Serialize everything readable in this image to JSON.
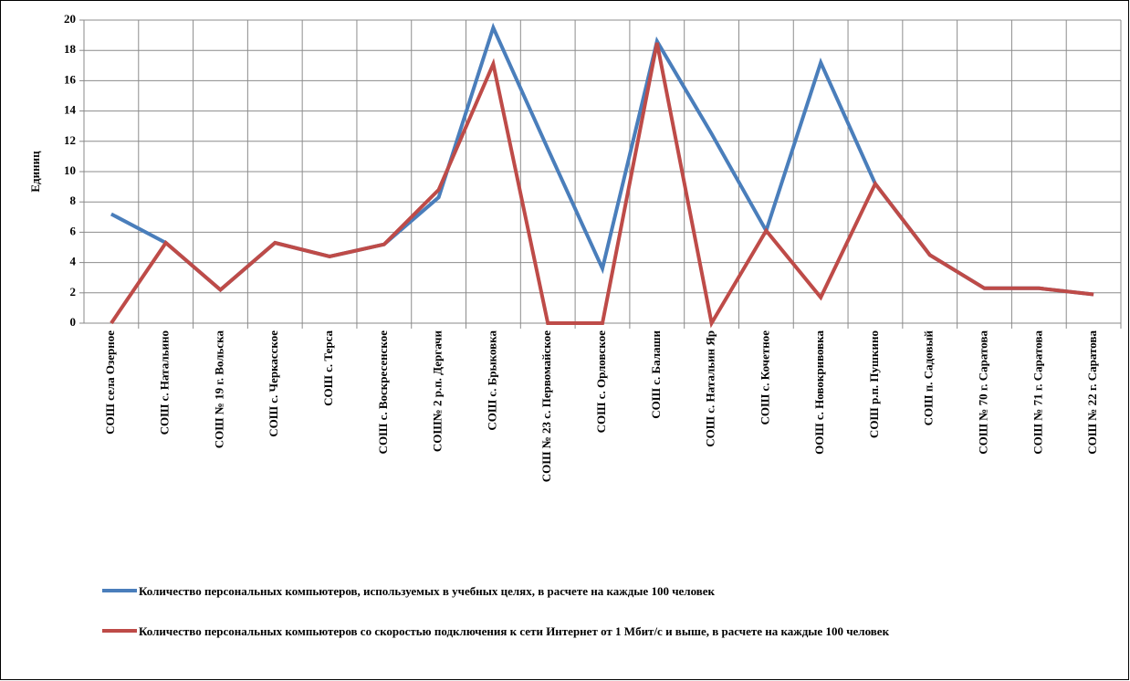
{
  "chart_data": {
    "type": "line",
    "ylabel": "Единиц",
    "categories": [
      "СОШ села Озерное",
      "СОШ с. Натальино",
      "СОШ № 19 г. Вольска",
      "СОШ с. Черкасское",
      "СОШ с. Терса",
      "СОШ с. Воскресенское",
      "СОШ№ 2 р.п. Дергачи",
      "СОШ с. Брыковка",
      "СОШ № 23 с. Первомайское",
      "СОШ с. Орловское",
      "СОШ с. Балаши",
      "СОШ с. Натальин Яр",
      "СОШ с. Кочетное",
      "ООШ с. Новокривовка",
      "СОШ р.п. Пушкино",
      "СОШ п. Садовый",
      "СОШ № 70 г. Саратова",
      "СОШ № 71 г. Саратова",
      "СОШ № 22 г. Саратова"
    ],
    "series": [
      {
        "name": "Количество персональных компьютеров, используемых в учебных целях, в расчете на каждые 100 человек",
        "color": "#4a7ebb",
        "values": [
          7.2,
          5.3,
          2.2,
          5.3,
          4.4,
          5.2,
          8.3,
          19.5,
          11.5,
          3.6,
          18.6,
          12.5,
          6.1,
          17.2,
          9.2,
          4.5,
          2.3,
          2.3,
          1.9
        ]
      },
      {
        "name": "Количество персональных компьютеров со скоростью подключения к сети Интернет от 1 Мбит/с и выше, в расчете на каждые 100 человек",
        "color": "#be4b48",
        "values": [
          0,
          5.3,
          2.2,
          5.3,
          4.4,
          5.2,
          8.8,
          17.1,
          0,
          0,
          18.5,
          0,
          6.1,
          1.7,
          9.2,
          4.5,
          2.3,
          2.3,
          1.9
        ]
      }
    ],
    "ylim": [
      0,
      20
    ],
    "yticks": [
      0,
      2,
      4,
      6,
      8,
      10,
      12,
      14,
      16,
      18,
      20
    ],
    "grid": true
  }
}
